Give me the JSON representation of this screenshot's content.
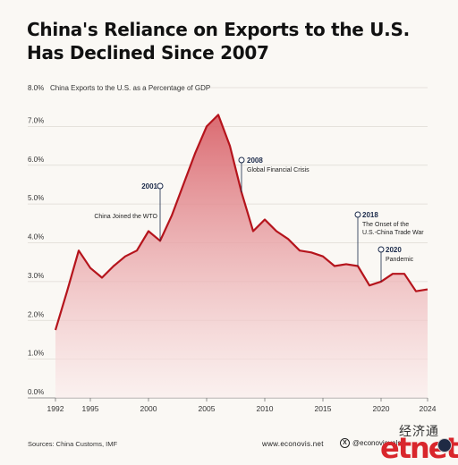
{
  "title_line1": "China's Reliance on Exports to the U.S.",
  "title_line2": "Has Declined Since 2007",
  "footer": {
    "sources": "Sources: China Customs, IMF",
    "website": "www.econovis.net",
    "social": "@econovisuals",
    "social_icon": "x-logo-icon"
  },
  "watermark": {
    "chinese": "经济通",
    "logo": "etnet"
  },
  "colors": {
    "line": "#b5141c",
    "area_top": "#d9636a",
    "area_bottom": "#fbecec",
    "annotation": "#1b2a4a"
  },
  "chart_data": {
    "type": "area",
    "title": "China's Reliance on Exports to the U.S. Has Declined Since 2007",
    "ylabel": "China Exports to the U.S. as a Percentage of GDP",
    "xlabel": "",
    "ylim": [
      0,
      8
    ],
    "xlim": [
      1992,
      2024
    ],
    "grid": true,
    "yticks": [
      0,
      1,
      2,
      3,
      4,
      5,
      6,
      7,
      8
    ],
    "ytick_labels": [
      "0.0%",
      "1.0%",
      "2.0%",
      "3.0%",
      "4.0%",
      "5.0%",
      "6.0%",
      "7.0%",
      "8.0%"
    ],
    "xticks": [
      1992,
      1995,
      2000,
      2005,
      2010,
      2015,
      2020,
      2024
    ],
    "xtick_labels": [
      "1992",
      "1995",
      "2000",
      "2005",
      "2010",
      "2015",
      "2020",
      "2024"
    ],
    "x": [
      1992,
      1993,
      1994,
      1995,
      1996,
      1997,
      1998,
      1999,
      2000,
      2001,
      2002,
      2003,
      2004,
      2005,
      2006,
      2007,
      2008,
      2009,
      2010,
      2011,
      2012,
      2013,
      2014,
      2015,
      2016,
      2017,
      2018,
      2019,
      2020,
      2021,
      2022,
      2023,
      2024
    ],
    "series": [
      {
        "values": [
          1.75,
          2.75,
          3.8,
          3.35,
          3.1,
          3.4,
          3.65,
          3.8,
          4.3,
          4.05,
          4.7,
          5.5,
          6.3,
          7.0,
          7.3,
          6.5,
          5.3,
          4.3,
          4.6,
          4.3,
          4.1,
          3.8,
          3.75,
          3.65,
          3.4,
          3.45,
          3.4,
          2.9,
          3.0,
          3.2,
          3.2,
          2.75,
          2.8
        ]
      }
    ],
    "annotations": [
      {
        "year": "2001",
        "text": "China Joined the WTO",
        "x": 2001,
        "y": 4.05
      },
      {
        "year": "2008",
        "text": "Global Financial Crisis",
        "x": 2008,
        "y": 5.3
      },
      {
        "year": "2018",
        "text": "The Onset of the U.S.-China Trade War",
        "x": 2018,
        "y": 3.4
      },
      {
        "year": "2020",
        "text": "Pandemic",
        "x": 2020,
        "y": 3.0
      }
    ]
  }
}
